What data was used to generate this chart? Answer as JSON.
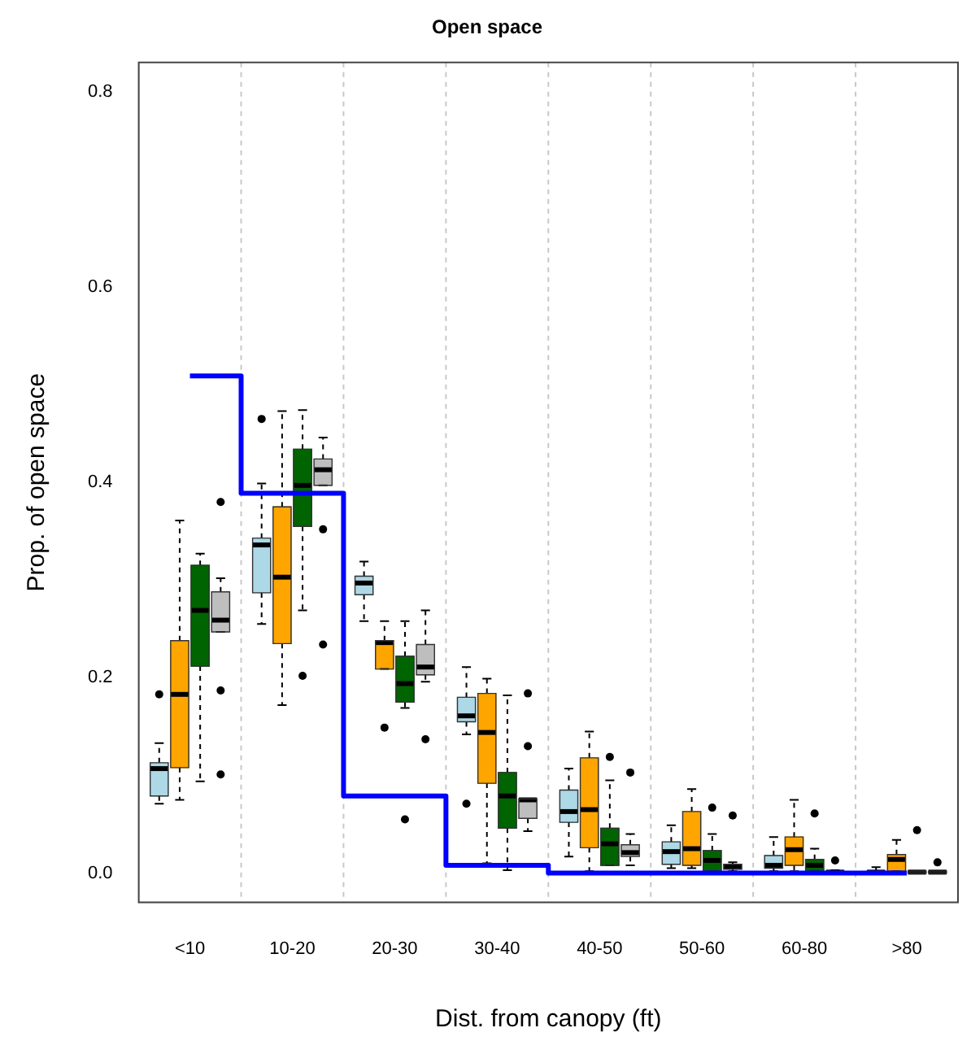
{
  "chart_data": {
    "type": "box",
    "title": "Open space",
    "xlabel": "Dist. from canopy (ft)",
    "ylabel": "Prop. of open space",
    "categories": [
      "<10",
      "10-20",
      "20-30",
      "30-40",
      "40-50",
      "50-60",
      "60-80",
      ">80"
    ],
    "ylim": [
      -0.03,
      0.83
    ],
    "yticks": [
      {
        "value": 0,
        "label": "0.0"
      },
      {
        "value": 0.2,
        "label": "0.2"
      },
      {
        "value": 0.4,
        "label": "0.4"
      },
      {
        "value": 0.6,
        "label": "0.6"
      },
      {
        "value": 0.8,
        "label": "0.8"
      }
    ],
    "grid": "x",
    "series": [
      {
        "color": "#add8e6",
        "boxes": [
          {
            "low": 0.071,
            "q1": 0.079,
            "median": 0.107,
            "q3": 0.113,
            "high": 0.133,
            "outliers": [
              0.183
            ]
          },
          {
            "low": 0.255,
            "q1": 0.287,
            "median": 0.336,
            "q3": 0.343,
            "high": 0.399,
            "outliers": [
              0.465
            ]
          },
          {
            "low": 0.258,
            "q1": 0.285,
            "median": 0.297,
            "q3": 0.304,
            "high": 0.319
          },
          {
            "low": 0.142,
            "q1": 0.155,
            "median": 0.161,
            "q3": 0.18,
            "high": 0.211,
            "outliers": [
              0.071
            ]
          },
          {
            "low": 0.017,
            "q1": 0.052,
            "median": 0.063,
            "q3": 0.085,
            "high": 0.107
          },
          {
            "low": 0.005,
            "q1": 0.009,
            "median": 0.022,
            "q3": 0.032,
            "high": 0.049
          },
          {
            "low": 0.002,
            "q1": 0.005,
            "median": 0.008,
            "q3": 0.018,
            "high": 0.037
          },
          {
            "low": 0,
            "q1": 0,
            "median": 0.001,
            "q3": 0.002,
            "high": 0.006
          }
        ]
      },
      {
        "color": "#ffa500",
        "boxes": [
          {
            "low": 0.075,
            "q1": 0.108,
            "median": 0.183,
            "q3": 0.238,
            "high": 0.361
          },
          {
            "low": 0.172,
            "q1": 0.235,
            "median": 0.303,
            "q3": 0.375,
            "high": 0.473
          },
          {
            "low": 0.209,
            "q1": 0.209,
            "median": 0.236,
            "q3": 0.238,
            "high": 0.258,
            "outliers": [
              0.149
            ]
          },
          {
            "low": 0.01,
            "q1": 0.092,
            "median": 0.144,
            "q3": 0.184,
            "high": 0.199
          },
          {
            "low": 0.002,
            "q1": 0.026,
            "median": 0.065,
            "q3": 0.118,
            "high": 0.145
          },
          {
            "low": 0.005,
            "q1": 0.008,
            "median": 0.025,
            "q3": 0.063,
            "high": 0.086
          },
          {
            "low": 0.002,
            "q1": 0.008,
            "median": 0.024,
            "q3": 0.037,
            "high": 0.075
          },
          {
            "low": 0.002,
            "q1": 0.002,
            "median": 0.014,
            "q3": 0.019,
            "high": 0.034
          }
        ]
      },
      {
        "color": "#006400",
        "boxes": [
          {
            "low": 0.094,
            "q1": 0.212,
            "median": 0.269,
            "q3": 0.315,
            "high": 0.327
          },
          {
            "low": 0.269,
            "q1": 0.355,
            "median": 0.397,
            "q3": 0.434,
            "high": 0.474,
            "outliers": [
              0.202
            ]
          },
          {
            "low": 0.169,
            "q1": 0.175,
            "median": 0.194,
            "q3": 0.222,
            "high": 0.258,
            "outliers": [
              0.055
            ]
          },
          {
            "low": 0.003,
            "q1": 0.046,
            "median": 0.079,
            "q3": 0.103,
            "high": 0.182
          },
          {
            "low": 0.008,
            "q1": 0.008,
            "median": 0.03,
            "q3": 0.046,
            "high": 0.095,
            "outliers": [
              0.119
            ]
          },
          {
            "low": 0.002,
            "q1": 0.002,
            "median": 0.013,
            "q3": 0.023,
            "high": 0.04,
            "outliers": [
              0.067
            ]
          },
          {
            "low": 0.002,
            "q1": 0.002,
            "median": 0.008,
            "q3": 0.014,
            "high": 0.025,
            "outliers": [
              0.061
            ]
          },
          {
            "low": 0,
            "q1": 0,
            "median": 0.001,
            "q3": 0.002,
            "high": 0.002,
            "outliers": [
              0.044
            ]
          }
        ]
      },
      {
        "color": "#bebebe",
        "boxes": [
          {
            "low": 0.247,
            "q1": 0.247,
            "median": 0.259,
            "q3": 0.288,
            "high": 0.302,
            "outliers": [
              0.38,
              0.187,
              0.101
            ]
          },
          {
            "low": 0.397,
            "q1": 0.397,
            "median": 0.413,
            "q3": 0.424,
            "high": 0.446,
            "outliers": [
              0.352,
              0.234
            ]
          },
          {
            "low": 0.196,
            "q1": 0.203,
            "median": 0.211,
            "q3": 0.234,
            "high": 0.269,
            "outliers": [
              0.137
            ]
          },
          {
            "low": 0.043,
            "q1": 0.056,
            "median": 0.075,
            "q3": 0.076,
            "high": 0.076,
            "outliers": [
              0.184,
              0.13
            ]
          },
          {
            "low": 0.008,
            "q1": 0.017,
            "median": 0.021,
            "q3": 0.029,
            "high": 0.04,
            "outliers": [
              0.103
            ]
          },
          {
            "low": 0.002,
            "q1": 0.004,
            "median": 0.007,
            "q3": 0.009,
            "high": 0.011,
            "outliers": [
              0.059
            ]
          },
          {
            "low": 0,
            "q1": 0.001,
            "median": 0.001,
            "q3": 0.002,
            "high": 0.003,
            "outliers": [
              0.013
            ]
          },
          {
            "low": 0,
            "q1": 0,
            "median": 0.001,
            "q3": 0.002,
            "high": 0.002,
            "outliers": [
              0.011
            ]
          }
        ]
      },
      {
        "type": "step",
        "color": "#0000ff",
        "values": [
          0.509,
          0.389,
          0.079,
          0.008,
          0,
          0,
          0,
          0
        ]
      }
    ]
  }
}
